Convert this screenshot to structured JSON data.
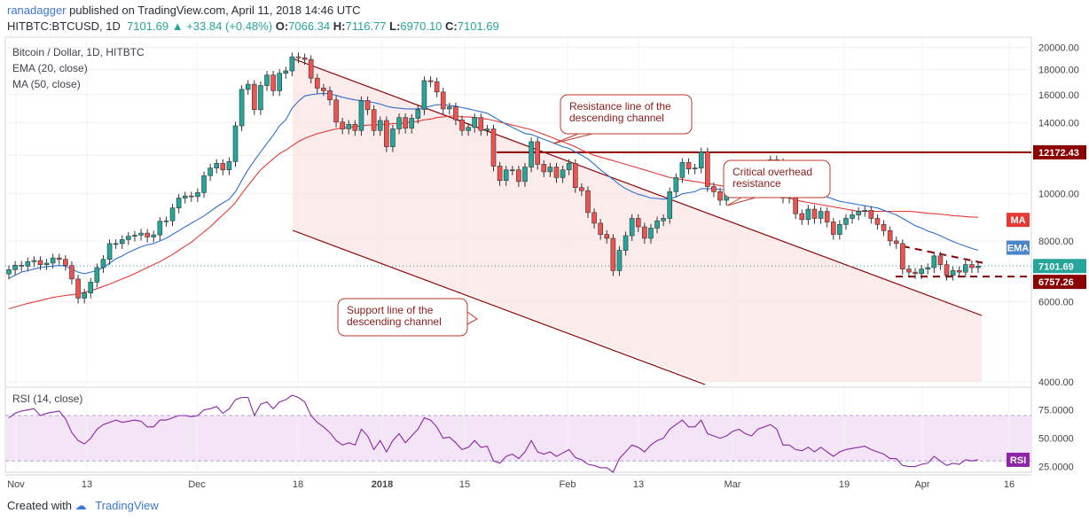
{
  "header": {
    "author": "ranadagger",
    "published": "published on TradingView.com, April 11, 2018 14:46 UTC",
    "symbol": "HITBTC:BTCUSD, 1D",
    "last": "7101.69",
    "change": "+33.84 (+0.48%)",
    "o_label": "O:",
    "o": "7066.34",
    "h_label": "H:",
    "h": "7116.77",
    "l_label": "L:",
    "l": "6970.10",
    "c_label": "C:",
    "c": "7101.69"
  },
  "footer": {
    "created_with": "Created with",
    "brand": "TradingView"
  },
  "colors": {
    "up": "#26a69a",
    "down": "#ef5350",
    "ema": "#2f6fd1",
    "ma": "#e53935",
    "rsi": "#8e24aa",
    "resistance": "#8b0000",
    "channel_fill": "#fbe4e4"
  },
  "chart_data": [
    {
      "type": "candlestick",
      "title": "Bitcoin / Dollar, 1D, HITBTC",
      "indicators": [
        "EMA (20, close)",
        "MA (50, close)"
      ],
      "xlabel": "",
      "ylabel": "",
      "x_ticks": [
        "Nov",
        "13",
        "Dec",
        "18",
        "2018",
        "15",
        "Feb",
        "13",
        "Mar",
        "19",
        "Apr",
        "16"
      ],
      "y_ticks": [
        "20000.00",
        "18000.00",
        "16000.00",
        "14000.00",
        "12000.00",
        "10000.00",
        "8000.00",
        "6000.00",
        "4000.00"
      ],
      "ylim": [
        4000,
        20000
      ],
      "scale": "log",
      "price_labels": [
        {
          "label": "12172.43",
          "value": 12172.43
        },
        {
          "label": "7101.69",
          "value": 7101.69
        },
        {
          "label": "6757.26",
          "value": 6757.26
        }
      ],
      "series_tags": [
        "MA",
        "EMA"
      ],
      "annotations": [
        "Resistance line of the descending channel",
        "Critical overhead resistance",
        "Support line of the descending channel"
      ],
      "candles_close": [
        6980,
        7130,
        7100,
        7250,
        7290,
        7150,
        7200,
        7380,
        7330,
        7120,
        6680,
        6100,
        6250,
        6580,
        7050,
        7330,
        7900,
        7900,
        8050,
        8180,
        8220,
        8300,
        8150,
        8230,
        8780,
        8800,
        9350,
        9800,
        9900,
        9870,
        10060,
        10900,
        11300,
        11550,
        11200,
        11650,
        13800,
        16400,
        16800,
        14900,
        16700,
        17550,
        16300,
        17700,
        17900,
        19140,
        19050,
        18900,
        17300,
        16500,
        16300,
        15600,
        14050,
        13600,
        13900,
        13500,
        15550,
        14900,
        13500,
        14150,
        12500,
        13600,
        14350,
        13650,
        14300,
        14900,
        17100,
        17000,
        16200,
        14950,
        15100,
        14200,
        13500,
        13700,
        14350,
        13500,
        13600,
        11400,
        10650,
        11200,
        11200,
        10600,
        11350,
        12800,
        11500,
        11100,
        11350,
        10800,
        11200,
        11550,
        10300,
        10150,
        9150,
        8700,
        8250,
        8100,
        6950,
        7650,
        8200,
        8900,
        8550,
        8100,
        8500,
        8800,
        8900,
        10100,
        10800,
        11600,
        11250,
        11300,
        12200,
        10350,
        10100,
        9700,
        10100,
        10500,
        10900,
        10500,
        10350,
        11100,
        11500,
        11750,
        11600,
        9800,
        9850,
        9100,
        8850,
        9300,
        8900,
        9200,
        8750,
        8250,
        8650,
        8900,
        9050,
        9200,
        9250,
        8900,
        8650,
        8400,
        8000,
        7900,
        7000,
        6900,
        6850,
        7000,
        7050,
        7450,
        7150,
        6800,
        6950,
        6900,
        7150,
        7050,
        7101.69
      ],
      "ema_20": [
        6700,
        6800,
        6900,
        6950,
        7000,
        7050,
        7080,
        7100,
        7120,
        7100,
        7000,
        6900,
        6850,
        6900,
        6950,
        7050,
        7200,
        7350,
        7450,
        7580,
        7680,
        7780,
        7850,
        7900,
        8000,
        8100,
        8250,
        8400,
        8550,
        8700,
        8850,
        9000,
        9200,
        9400,
        9580,
        9750,
        10100,
        10650,
        11200,
        11700,
        12200,
        12700,
        13200,
        13800,
        14200,
        15000,
        15500,
        15900,
        16000,
        16050,
        16100,
        16050,
        15950,
        15800,
        15700,
        15600,
        15550,
        15500,
        15400,
        15300,
        15150,
        15050,
        15000,
        14950,
        14950,
        14950,
        15050,
        15150,
        15250,
        15250,
        15200,
        15150,
        15050,
        14950,
        14850,
        14750,
        14650,
        14400,
        14150,
        13900,
        13700,
        13500,
        13300,
        13250,
        13100,
        12950,
        12800,
        12650,
        12500,
        12400,
        12200,
        12000,
        11800,
        11500,
        11200,
        10950,
        10700,
        10450,
        10250,
        10100,
        9980,
        9900,
        9800,
        9780,
        9750,
        9780,
        9850,
        10000,
        10050,
        10100,
        10250,
        10250,
        10250,
        10200,
        10200,
        10200,
        10250,
        10250,
        10250,
        10300,
        10400,
        10500,
        10550,
        10450,
        10400,
        10300,
        10200,
        10100,
        10000,
        9950,
        9850,
        9750,
        9650,
        9600,
        9550,
        9500,
        9450,
        9400,
        9350,
        9250,
        9150,
        9050,
        8900,
        8750,
        8600,
        8500,
        8380,
        8300,
        8200,
        8080,
        7980,
        7880,
        7800,
        7720,
        7650
      ],
      "ma_50": [
        5800,
        5850,
        5900,
        5950,
        5990,
        6030,
        6080,
        6120,
        6150,
        6180,
        6200,
        6230,
        6270,
        6320,
        6380,
        6450,
        6520,
        6600,
        6680,
        6760,
        6850,
        6950,
        7050,
        7150,
        7250,
        7380,
        7500,
        7650,
        7800,
        7950,
        8150,
        8350,
        8550,
        8800,
        9050,
        9300,
        9600,
        10000,
        10400,
        10800,
        11200,
        11500,
        11800,
        12100,
        12300,
        12550,
        12800,
        13000,
        13150,
        13300,
        13400,
        13500,
        13600,
        13650,
        13700,
        13750,
        13800,
        13850,
        13850,
        13900,
        13900,
        13950,
        13950,
        14000,
        14050,
        14100,
        14200,
        14250,
        14350,
        14400,
        14450,
        14450,
        14400,
        14400,
        14350,
        14300,
        14250,
        14150,
        14050,
        13950,
        13850,
        13750,
        13650,
        13550,
        13400,
        13250,
        13100,
        12950,
        12800,
        12650,
        12500,
        12300,
        12150,
        12000,
        11900,
        11800,
        11700,
        11600,
        11500,
        11400,
        11300,
        11200,
        11100,
        11000,
        10900,
        10800,
        10750,
        10700,
        10650,
        10600,
        10550,
        10500,
        10450,
        10400,
        10350,
        10300,
        10250,
        10200,
        10150,
        10100,
        10050,
        10000,
        9950,
        9900,
        9800,
        9700,
        9650,
        9600,
        9550,
        9500,
        9450,
        9400,
        9350,
        9300,
        9250,
        9200,
        9200,
        9200,
        9200,
        9200,
        9200,
        9200,
        9200,
        9200,
        9180,
        9150,
        9120,
        9100,
        9080,
        9050,
        9020,
        9000,
        8980,
        8960,
        8950
      ]
    },
    {
      "type": "line",
      "title": "RSI (14, close)",
      "y_ticks": [
        "75.0000",
        "50.0000",
        "25.0000"
      ],
      "ylim": [
        20,
        95
      ],
      "band": [
        30,
        70
      ],
      "tag": "RSI",
      "values": [
        68,
        72,
        74,
        75,
        76,
        70,
        72,
        73,
        74,
        67,
        55,
        48,
        45,
        50,
        58,
        62,
        64,
        66,
        64,
        65,
        66,
        65,
        60,
        60,
        66,
        66,
        68,
        70,
        70,
        69,
        70,
        75,
        76,
        78,
        72,
        76,
        84,
        86,
        86,
        70,
        80,
        82,
        76,
        82,
        84,
        88,
        86,
        82,
        70,
        64,
        60,
        55,
        48,
        44,
        46,
        44,
        58,
        52,
        40,
        48,
        38,
        48,
        54,
        46,
        52,
        58,
        68,
        66,
        60,
        50,
        51,
        46,
        40,
        42,
        48,
        42,
        43,
        30,
        28,
        34,
        36,
        32,
        38,
        48,
        38,
        36,
        38,
        34,
        37,
        40,
        33,
        31,
        27,
        26,
        24,
        24,
        20,
        32,
        38,
        44,
        42,
        38,
        44,
        48,
        50,
        58,
        62,
        66,
        60,
        60,
        66,
        54,
        52,
        50,
        52,
        56,
        58,
        54,
        52,
        58,
        60,
        62,
        58,
        44,
        44,
        40,
        39,
        42,
        38,
        42,
        38,
        34,
        38,
        40,
        41,
        42,
        43,
        40,
        38,
        36,
        32,
        32,
        26,
        25,
        25,
        27,
        28,
        34,
        30,
        26,
        28,
        27,
        31,
        30,
        31
      ]
    }
  ]
}
